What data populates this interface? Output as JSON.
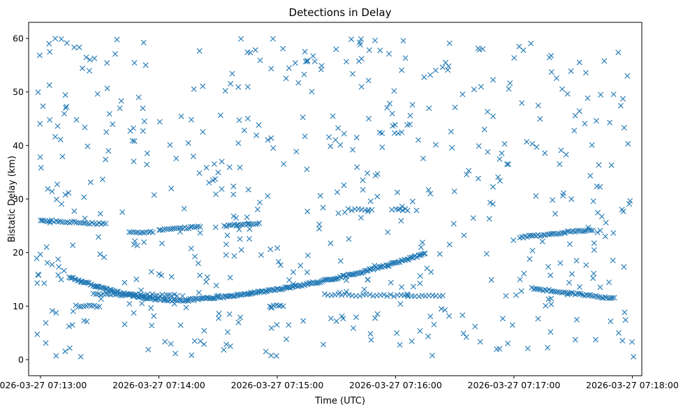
{
  "chart_data": {
    "type": "scatter",
    "title": "Detections in Delay",
    "xlabel": "Time (UTC)",
    "ylabel": "Bistatic Delay (km)",
    "x_unit": "minutes since 2026-03-27 07:13:00",
    "xlim": [
      -0.1,
      5.08
    ],
    "ylim": [
      -3.0,
      63.0
    ],
    "x_ticks": [
      {
        "value": 0,
        "label": "2026-03-27 07:13:00"
      },
      {
        "value": 1,
        "label": "2026-03-27 07:14:00"
      },
      {
        "value": 2,
        "label": "2026-03-27 07:15:00"
      },
      {
        "value": 3,
        "label": "2026-03-27 07:16:00"
      },
      {
        "value": 4,
        "label": "2026-03-27 07:17:00"
      },
      {
        "value": 5,
        "label": "2026-03-27 07:18:00"
      }
    ],
    "y_ticks": [
      {
        "value": 0,
        "label": "0"
      },
      {
        "value": 10,
        "label": "10"
      },
      {
        "value": 20,
        "label": "20"
      },
      {
        "value": 30,
        "label": "30"
      },
      {
        "value": 40,
        "label": "40"
      },
      {
        "value": 50,
        "label": "50"
      },
      {
        "value": 60,
        "label": "60"
      }
    ],
    "marker": "x",
    "grid": false,
    "series": [
      {
        "name": "detections",
        "color": "#1f77b4",
        "tracks": [
          {
            "t_start": 0.24,
            "t_end": 0.35,
            "d_start": 15.4,
            "d_end": 14.6,
            "count": 10
          },
          {
            "t_start": 0.35,
            "t_end": 1.05,
            "d_start": 14.6,
            "d_end": 11.2,
            "count": 60,
            "curve": "decay"
          },
          {
            "t_start": 1.05,
            "t_end": 1.25,
            "d_start": 11.0,
            "d_end": 11.0,
            "count": 14
          },
          {
            "t_start": 1.25,
            "t_end": 3.25,
            "d_start": 11.2,
            "d_end": 19.8,
            "count": 170,
            "curve": "quad"
          },
          {
            "t_start": 0.0,
            "t_end": 0.55,
            "d_start": 26.0,
            "d_end": 25.3,
            "count": 30
          },
          {
            "t_start": 0.75,
            "t_end": 0.95,
            "d_start": 23.8,
            "d_end": 23.8,
            "count": 12
          },
          {
            "t_start": 1.0,
            "t_end": 1.35,
            "d_start": 24.2,
            "d_end": 24.8,
            "count": 22
          },
          {
            "t_start": 1.55,
            "t_end": 1.85,
            "d_start": 25.0,
            "d_end": 25.4,
            "count": 18
          },
          {
            "t_start": 4.05,
            "t_end": 4.65,
            "d_start": 22.8,
            "d_end": 24.3,
            "count": 40
          },
          {
            "t_start": 4.15,
            "t_end": 4.85,
            "d_start": 13.3,
            "d_end": 11.4,
            "count": 45
          },
          {
            "t_start": 0.45,
            "t_end": 1.15,
            "d_start": 12.2,
            "d_end": 12.0,
            "count": 35
          },
          {
            "t_start": 2.4,
            "t_end": 3.4,
            "d_start": 12.1,
            "d_end": 11.9,
            "count": 35
          },
          {
            "t_start": 0.3,
            "t_end": 0.5,
            "d_start": 10.0,
            "d_end": 10.0,
            "count": 10
          },
          {
            "t_start": 1.95,
            "t_end": 2.05,
            "d_start": 10.0,
            "d_end": 10.0,
            "count": 6
          },
          {
            "t_start": 3.0,
            "t_end": 3.1,
            "d_start": 28.0,
            "d_end": 28.0,
            "count": 6
          },
          {
            "t_start": 2.6,
            "t_end": 2.8,
            "d_start": 28.0,
            "d_end": 28.0,
            "count": 8
          }
        ],
        "random_detections": {
          "count": 560,
          "t_range": [
            -0.05,
            5.02
          ],
          "d_range": [
            0.5,
            60.0
          ]
        }
      }
    ]
  }
}
